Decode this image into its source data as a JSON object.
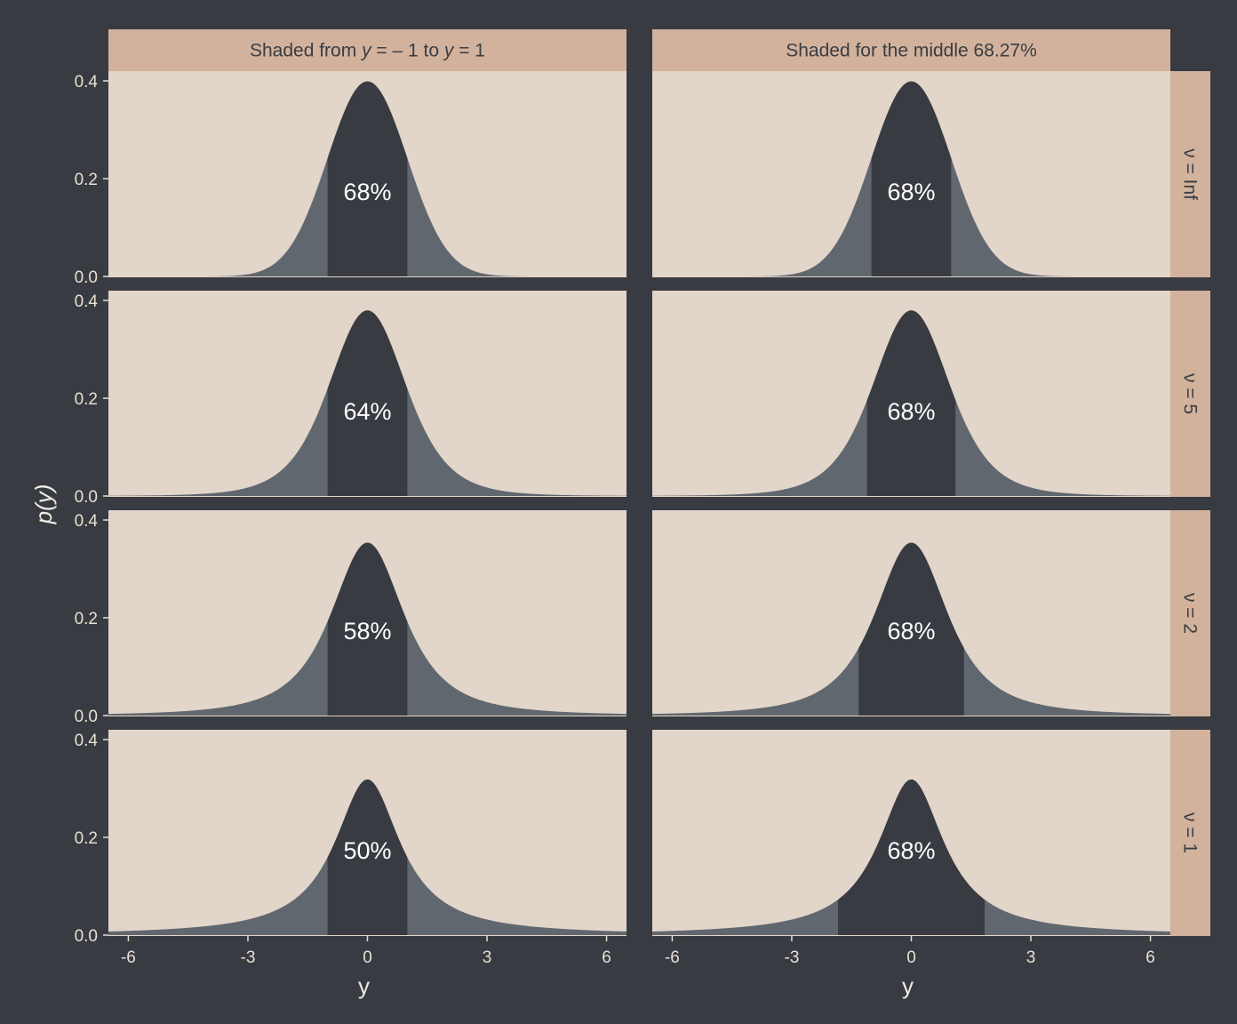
{
  "colors": {
    "background": "#383b41",
    "panel": "#e2d5c9",
    "strip": "#d3b29d",
    "density_dark": "#383b41",
    "density_tail": "#61676e",
    "text": "#e8dfd4"
  },
  "chart_data": {
    "type": "area",
    "ylabel": "p(y)",
    "xlabel": "y",
    "xlim": [
      -6.5,
      6.5
    ],
    "ylim": [
      0,
      0.4
    ],
    "x_ticks": [
      -6,
      -3,
      0,
      3,
      6
    ],
    "x_tick_labels": [
      "-6",
      "-3",
      "0",
      "3",
      "6"
    ],
    "y_ticks": [
      0,
      0.2,
      0.4
    ],
    "y_tick_labels": [
      "0.0",
      "0.2",
      "0.4"
    ],
    "columns": [
      {
        "pre": "Shaded from ",
        "var1": "y",
        "mid1": " = – 1 to ",
        "var2": "y",
        "post": " = 1"
      },
      {
        "pre": "Shaded for the middle 68.27%",
        "var1": "",
        "mid1": "",
        "var2": "",
        "post": ""
      }
    ],
    "rows": [
      {
        "label": "ν = Inf",
        "df": "Inf"
      },
      {
        "label": "ν = 5",
        "df": 5
      },
      {
        "label": "ν = 2",
        "df": 2
      },
      {
        "label": "ν = 1",
        "df": 1
      }
    ],
    "panels": [
      {
        "row": 0,
        "col": 0,
        "shade_from": -1,
        "shade_to": 1,
        "label": "68%"
      },
      {
        "row": 0,
        "col": 1,
        "shade_from": -1,
        "shade_to": 1,
        "label": "68%"
      },
      {
        "row": 1,
        "col": 0,
        "shade_from": -1,
        "shade_to": 1,
        "label": "64%"
      },
      {
        "row": 1,
        "col": 1,
        "shade_from": -1.11,
        "shade_to": 1.11,
        "label": "68%"
      },
      {
        "row": 2,
        "col": 0,
        "shade_from": -1,
        "shade_to": 1,
        "label": "58%"
      },
      {
        "row": 2,
        "col": 1,
        "shade_from": -1.32,
        "shade_to": 1.32,
        "label": "68%"
      },
      {
        "row": 3,
        "col": 0,
        "shade_from": -1,
        "shade_to": 1,
        "label": "50%"
      },
      {
        "row": 3,
        "col": 1,
        "shade_from": -1.84,
        "shade_to": 1.84,
        "label": "68%"
      }
    ]
  }
}
